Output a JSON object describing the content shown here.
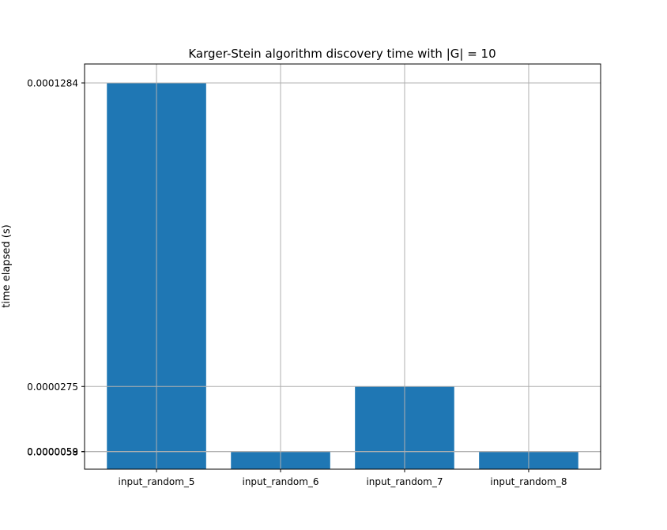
{
  "chart_data": {
    "type": "bar",
    "title": "Karger-Stein algorithm discovery time with |G| = 10",
    "xlabel": "",
    "ylabel": "time elapsed (s)",
    "categories": [
      "input_random_5",
      "input_random_6",
      "input_random_7",
      "input_random_8"
    ],
    "values": [
      0.0001284,
      5.8e-06,
      2.75e-05,
      5.9e-06
    ],
    "ylim": [
      0,
      0.0001347
    ],
    "ytick_values": [
      5.8e-06,
      5.9e-06,
      2.75e-05,
      0.0001284
    ],
    "ytick_labels": [
      "0.0000058",
      "0.0000059",
      "0.0000275",
      "0.0001284"
    ],
    "grid": true,
    "bar_color": "#1f77b4",
    "grid_color": "#b0b0b0"
  }
}
